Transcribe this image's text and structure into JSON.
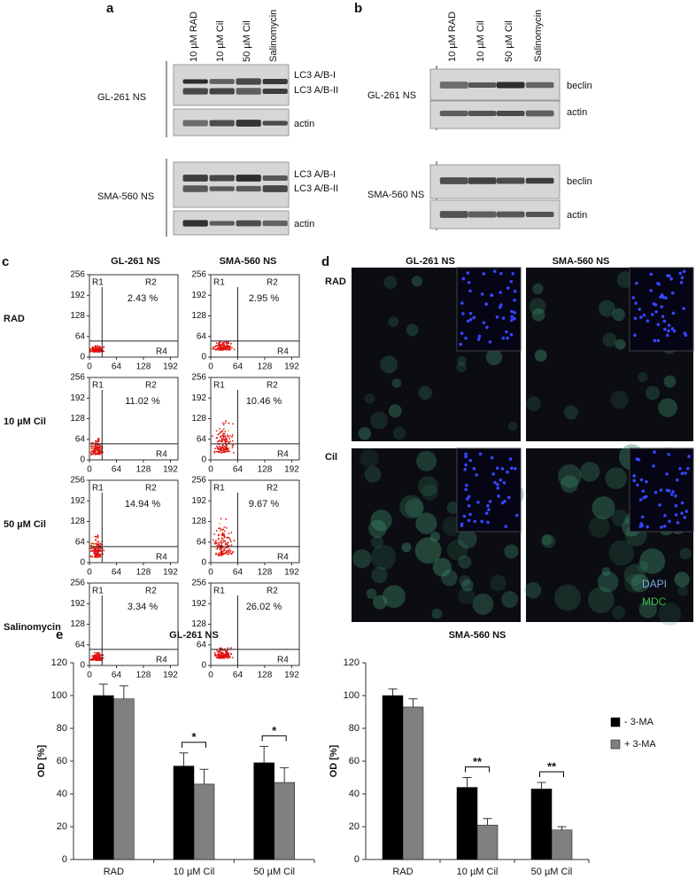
{
  "panel_labels": [
    "a",
    "b",
    "c",
    "d",
    "e"
  ],
  "panel_a": {
    "lanes": [
      "10 µM  RAD",
      "10 µM Cil",
      "50 µM Cil",
      "Salinomycin"
    ],
    "blots": [
      {
        "row": "GL-261 NS",
        "bands": [
          "LC3 A/B-I",
          "LC3 A/B-II",
          "actin"
        ]
      },
      {
        "row": "SMA-560 NS",
        "bands": [
          "LC3 A/B-I",
          "LC3 A/B-II",
          "actin"
        ]
      }
    ]
  },
  "panel_b": {
    "lanes": [
      "10 µM  RAD",
      "10 µM Cil",
      "50 µM Cil",
      "Salinomycin"
    ],
    "blots": [
      {
        "row": "GL-261 NS",
        "bands": [
          "beclin",
          "actin"
        ]
      },
      {
        "row": "SMA-560 NS",
        "bands": [
          "beclin",
          "actin"
        ]
      }
    ]
  },
  "panel_c": {
    "columns": [
      "GL-261 NS",
      "SMA-560 NS"
    ],
    "rows": [
      "RAD",
      "10 µM Cil",
      "50 µM Cil",
      "Salinomycin"
    ],
    "gates": [
      "R1",
      "R2",
      "R4"
    ],
    "xlim": [
      0,
      210
    ],
    "ylim": [
      0,
      256
    ],
    "xticks": [
      0,
      64,
      128,
      192
    ],
    "yticks": [
      0,
      64,
      128,
      192,
      256
    ],
    "percent": [
      [
        "2.43 %",
        "2.95 %"
      ],
      [
        "11.02 %",
        "10.46 %"
      ],
      [
        "14.94 %",
        "9.67 %"
      ],
      [
        "3.34 %",
        "26.02 %"
      ]
    ]
  },
  "panel_d": {
    "columns": [
      "GL-261 NS",
      "SMA-560 NS"
    ],
    "rows": [
      "RAD",
      "Cil"
    ],
    "legend": [
      {
        "text": "DAPI",
        "color": "#7fa8e0"
      },
      {
        "text": "MDC",
        "color": "#3cb54a"
      }
    ]
  },
  "chart_data": [
    {
      "type": "bar",
      "title": "GL-261 NS",
      "y_label": "OD [%]",
      "categories": [
        "RAD",
        "10 µM Cil",
        "50 µM Cil"
      ],
      "series": [
        {
          "color": "#000000",
          "values": [
            100,
            57,
            59
          ],
          "errors": [
            7,
            8,
            10
          ]
        },
        {
          "color": "#808080",
          "values": [
            98,
            46,
            47
          ],
          "errors": [
            8,
            9,
            9
          ]
        }
      ],
      "significance": [
        null,
        "*",
        "*"
      ],
      "ylim": [
        0,
        120
      ],
      "yticks": [
        0,
        20,
        40,
        60,
        80,
        100,
        120
      ]
    },
    {
      "type": "bar",
      "title": "SMA-560 NS",
      "y_label": "OD [%]",
      "categories": [
        "RAD",
        "10 µM Cil",
        "50 µM Cil"
      ],
      "series": [
        {
          "name": "- 3-MA",
          "color": "#000000",
          "values": [
            100,
            44,
            43
          ],
          "errors": [
            4,
            6,
            4
          ]
        },
        {
          "name": "+ 3-MA",
          "color": "#808080",
          "values": [
            93,
            21,
            18
          ],
          "errors": [
            5,
            4,
            2
          ]
        }
      ],
      "significance": [
        null,
        "**",
        "**"
      ],
      "ylim": [
        0,
        120
      ],
      "yticks": [
        0,
        20,
        40,
        60,
        80,
        100,
        120
      ]
    }
  ]
}
